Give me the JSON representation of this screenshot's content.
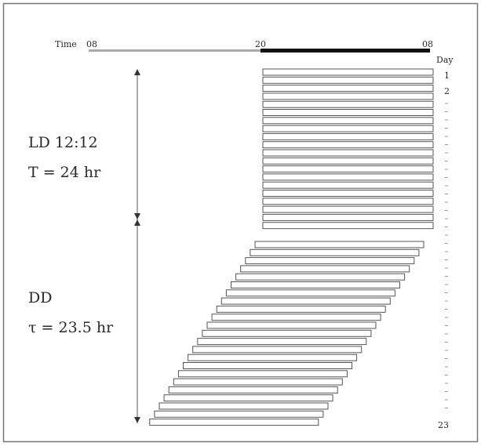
{
  "time_axis": {
    "label": "Time",
    "ticks": [
      "08",
      "20",
      "08"
    ],
    "day_label": "Day"
  },
  "conditions": [
    {
      "line1": "LD 12:12",
      "line2": "T = 24 hr"
    },
    {
      "line1": "DD",
      "line2": "τ = 23.5 hr"
    }
  ],
  "day_numbers": {
    "first": "1",
    "second": "2",
    "last": "23"
  },
  "colors": {
    "light_bar": "#aaaaaa",
    "dark_bar": "#111111",
    "activity_fill": "#ffffff",
    "activity_stroke": "#555555",
    "frame": "#777777"
  }
}
